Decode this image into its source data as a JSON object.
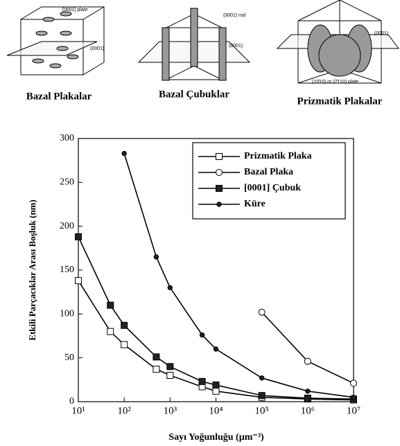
{
  "diagrams": {
    "captions": [
      "Bazal Plakalar",
      "Bazal Çubuklar",
      "Prizmatik Plakalar"
    ],
    "labels": [
      "[0001] plate",
      "(0001)",
      "(0001) rod",
      "(0001)",
      "(0001)",
      "(10̄10) or (2̄110) plate"
    ]
  },
  "chart_data": {
    "type": "line",
    "xlabel": "Sayı Yoğunluğu (µm⁻³)",
    "ylabel": "Etkili Parçacıklar Arası Boşluk (nm)",
    "log_x": true,
    "xlim": [
      10,
      10000000
    ],
    "ylim": [
      0,
      300
    ],
    "xticks": [
      {
        "value": 10,
        "label": "10¹"
      },
      {
        "value": 100,
        "label": "10²"
      },
      {
        "value": 1000,
        "label": "10³"
      },
      {
        "value": 10000,
        "label": "10⁴"
      },
      {
        "value": 100000,
        "label": "10⁵"
      },
      {
        "value": 1000000,
        "label": "10⁶"
      },
      {
        "value": 10000000,
        "label": "10⁷"
      }
    ],
    "yticks": [
      0,
      50,
      100,
      150,
      200,
      250,
      300
    ],
    "series": [
      {
        "name": "Prizmatik Plaka",
        "marker": "open-square",
        "color": "#000",
        "x": [
          10,
          50,
          100,
          500,
          1000,
          5000,
          10000,
          100000,
          1000000,
          10000000
        ],
        "values": [
          138,
          80,
          65,
          37,
          30,
          17,
          12,
          5,
          3,
          2
        ]
      },
      {
        "name": "Bazal Plaka",
        "marker": "open-circle",
        "color": "#000",
        "x": [
          100000,
          1000000,
          10000000
        ],
        "values": [
          102,
          46,
          21
        ]
      },
      {
        "name": "[0001] Çubuk",
        "marker": "filled-square",
        "color": "#000",
        "x": [
          10,
          50,
          100,
          500,
          1000,
          5000,
          10000,
          100000,
          1000000,
          10000000
        ],
        "values": [
          188,
          110,
          87,
          51,
          40,
          23,
          19,
          7,
          4,
          3
        ]
      },
      {
        "name": "Küre",
        "marker": "filled-circle",
        "color": "#000",
        "x": [
          100,
          500,
          1000,
          5000,
          10000,
          100000,
          1000000,
          10000000
        ],
        "values": [
          283,
          165,
          130,
          76,
          60,
          27,
          12,
          5
        ]
      }
    ]
  }
}
